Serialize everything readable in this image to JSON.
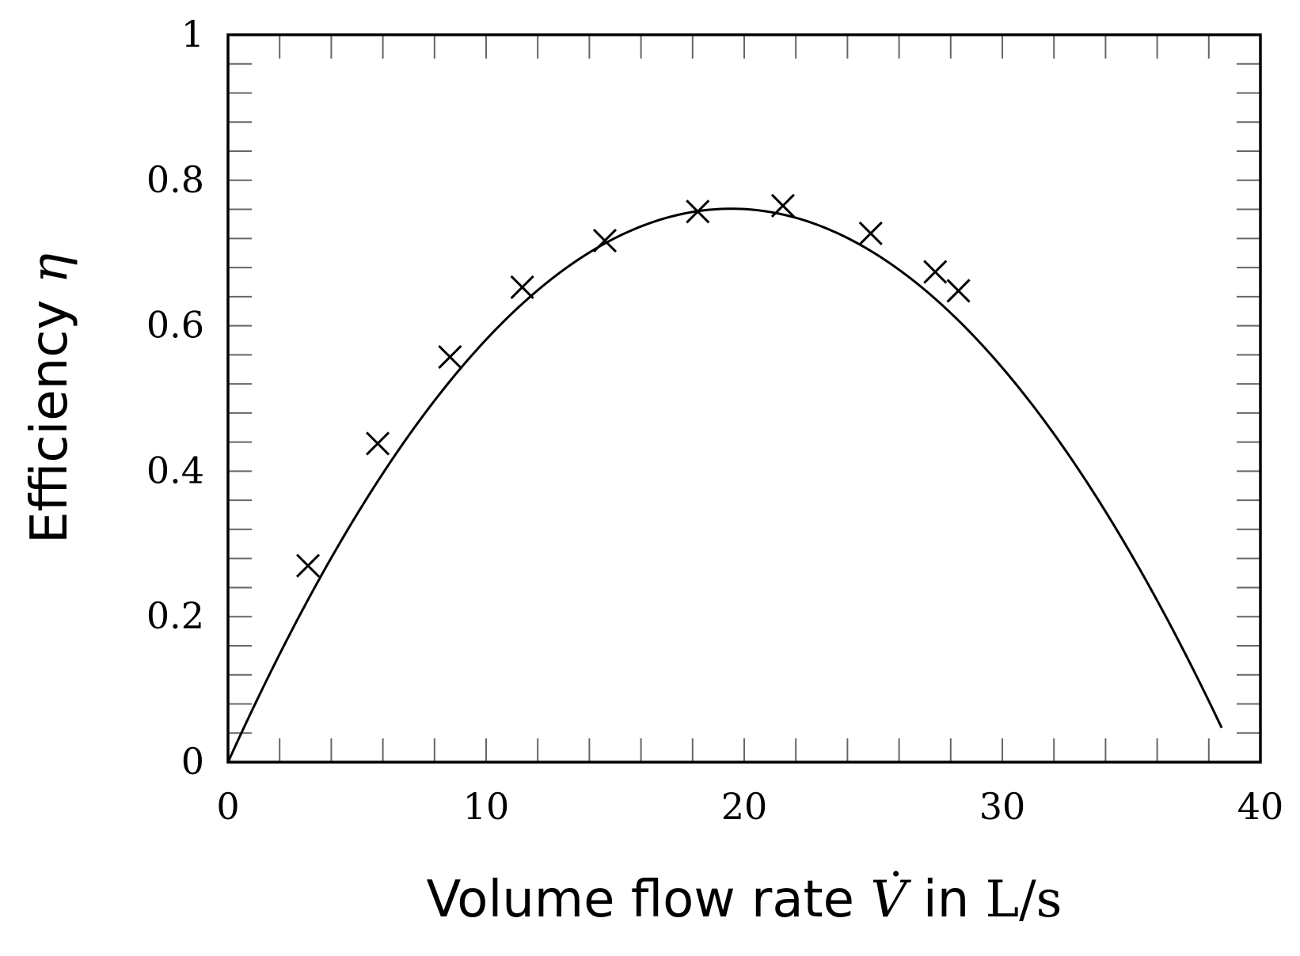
{
  "chart_data": {
    "type": "scatter",
    "xlabel": {
      "prefix": "Volume flow rate ",
      "symbol": "V",
      "middle": " in ",
      "unit": "L/s"
    },
    "ylabel": {
      "prefix": "Efficiency ",
      "symbol": "η"
    },
    "xlim": [
      0,
      40
    ],
    "ylim": [
      0,
      1
    ],
    "x_ticks": [
      0,
      10,
      20,
      30,
      40
    ],
    "x_tick_labels": [
      "0",
      "10",
      "20",
      "30",
      "40"
    ],
    "x_minor_step": 2,
    "y_ticks": [
      0,
      0.2,
      0.4,
      0.6,
      0.8,
      1
    ],
    "y_tick_labels": [
      "0",
      "0.2",
      "0.4",
      "0.6",
      "0.8",
      "1"
    ],
    "y_minor_step": 0.04,
    "grid": false,
    "series": [
      {
        "kind": "markers",
        "marker": "cross",
        "points": [
          [
            3.1,
            0.27
          ],
          [
            5.8,
            0.438
          ],
          [
            8.6,
            0.557
          ],
          [
            11.4,
            0.653
          ],
          [
            14.6,
            0.717
          ],
          [
            18.2,
            0.757
          ],
          [
            21.5,
            0.765
          ],
          [
            24.9,
            0.727
          ],
          [
            27.4,
            0.674
          ],
          [
            28.3,
            0.648
          ]
        ]
      },
      {
        "kind": "curve",
        "function": "cubic",
        "coefficients": [
          0,
          0.0783,
          -0.002027,
          6.5e-07
        ],
        "x_range": [
          0,
          38.5
        ]
      }
    ],
    "colors": {
      "line": "#000000",
      "marker": "#000000",
      "frame": "#000000",
      "tick": "#666666"
    }
  }
}
